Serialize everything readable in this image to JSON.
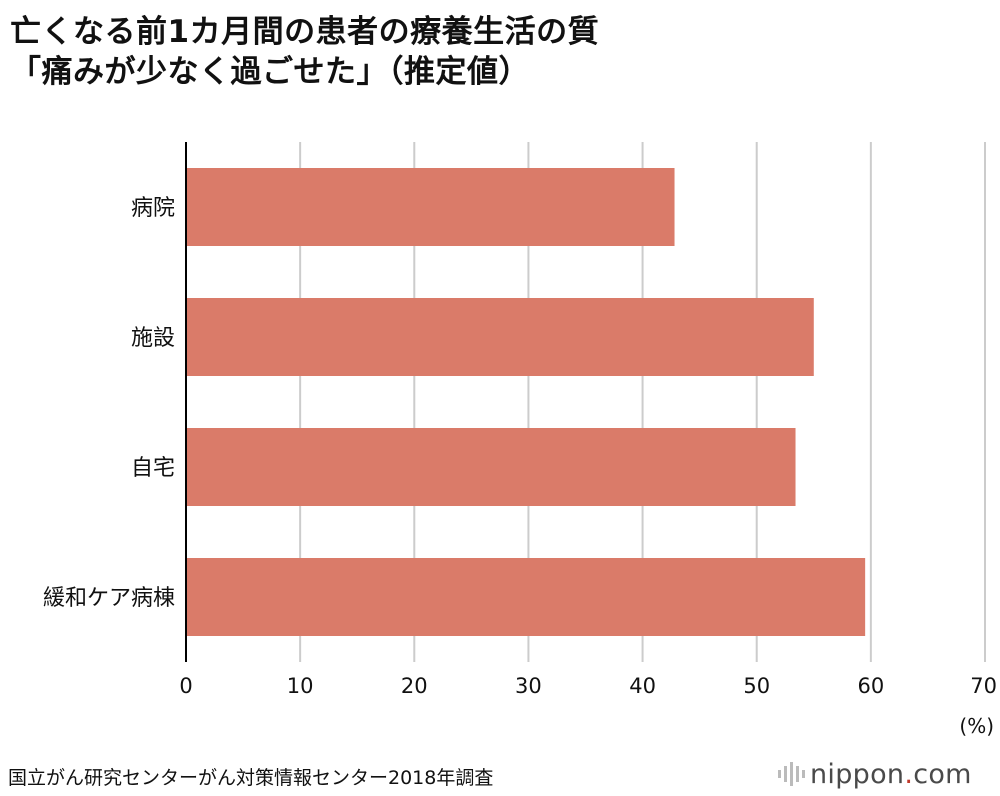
{
  "title_line1": "亡くなる前1カ月間の患者の療養生活の質",
  "title_line2": "「痛みが少なく過ごせた」（推定値）",
  "source": "国立がん研究センターがん対策情報センター2018年調査",
  "brand": {
    "name": "nippon",
    "dot": ".",
    "tld": "com",
    "icon": "soundwave-icon"
  },
  "colors": {
    "bar": "#da7b69",
    "grid": "#cccccc",
    "axis": "#000000",
    "brand_dot": "#c0392b"
  },
  "chart_data": {
    "type": "bar",
    "orientation": "horizontal",
    "categories": [
      "病院",
      "施設",
      "自宅",
      "緩和ケア病棟"
    ],
    "values": [
      42.8,
      55.0,
      53.4,
      59.5
    ],
    "xlim": [
      0,
      70
    ],
    "xticks": [
      "0",
      "10",
      "20",
      "30",
      "40",
      "50",
      "60",
      "70"
    ],
    "unit_label": "(%)",
    "grid": true,
    "legend": "none"
  }
}
